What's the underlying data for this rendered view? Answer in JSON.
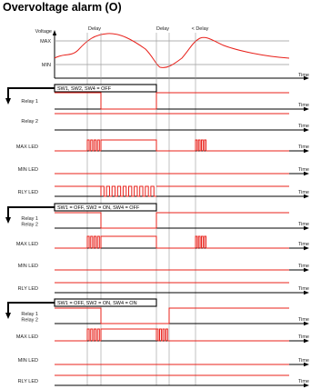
{
  "title": "Overvoltage alarm (O)",
  "top_chart": {
    "y_axis_label": "Voltage",
    "levels": [
      "MAX",
      "MIN"
    ],
    "time_label": "Time",
    "annotations": [
      "Delay",
      "Delay",
      "< Delay"
    ]
  },
  "sections": [
    {
      "config": "SW1, SW2, SW4 = OFF",
      "rows": [
        {
          "label": "Relay 1",
          "time": "Time"
        },
        {
          "label": "Relay 2",
          "time": "Time"
        },
        {
          "label": "MAX LED",
          "time": "Time"
        },
        {
          "label": "MIN LED",
          "time": "Time"
        },
        {
          "label": "RLY LED",
          "time": "Time"
        }
      ]
    },
    {
      "config": "SW1 = OFF, SW2 = ON, SW4 = OFF",
      "rows": [
        {
          "label": "Relay 1\nRelay 2",
          "time": "Time"
        },
        {
          "label": "MAX LED",
          "time": "Time"
        },
        {
          "label": "MIN LED",
          "time": "Time"
        },
        {
          "label": "RLY LED",
          "time": "Time"
        }
      ]
    },
    {
      "config": "SW1 = OFF, SW2 = ON, SW4 = ON",
      "rows": [
        {
          "label": "Relay 1\nRelay 2",
          "time": "Time"
        },
        {
          "label": "MAX LED",
          "time": "Time"
        },
        {
          "label": "MIN LED",
          "time": "Time"
        },
        {
          "label": "RLY LED",
          "time": "Time"
        }
      ]
    }
  ],
  "colors": {
    "signal": "#e8201a",
    "axis": "#000000",
    "guide": "#999999"
  }
}
